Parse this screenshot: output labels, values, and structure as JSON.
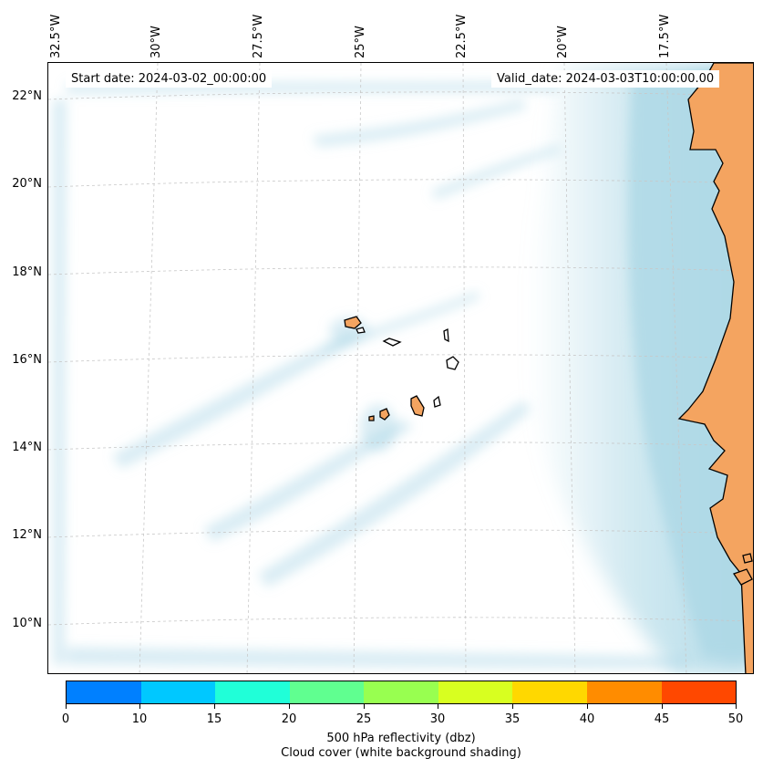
{
  "map": {
    "start_date": "Start date: 2024-03-02_00:00:00",
    "valid_date": "Valid_date: 2024-03-03T10:00:00.00",
    "lon_labels": [
      "32.5°W",
      "30°W",
      "27.5°W",
      "25°W",
      "22.5°W",
      "20°W",
      "17.5°W"
    ],
    "lat_labels": [
      "22°N",
      "20°N",
      "18°N",
      "16°N",
      "14°N",
      "12°N",
      "10°N"
    ],
    "colors": {
      "land": "#f4a460",
      "cloud": "#add8e6",
      "coastline": "#000000",
      "gridline": "#c8c8c8"
    }
  },
  "colorbar": {
    "ticks": [
      "0",
      "10",
      "15",
      "20",
      "25",
      "30",
      "35",
      "40",
      "45",
      "50"
    ],
    "colors": [
      "#0080ff",
      "#00c8ff",
      "#20ffd8",
      "#60ff90",
      "#98ff50",
      "#d8ff20",
      "#ffd800",
      "#ff8c00",
      "#ff4800"
    ],
    "label_line1": "500 hPa reflectivity (dbz)",
    "label_line2": "Cloud cover (white background shading)"
  }
}
